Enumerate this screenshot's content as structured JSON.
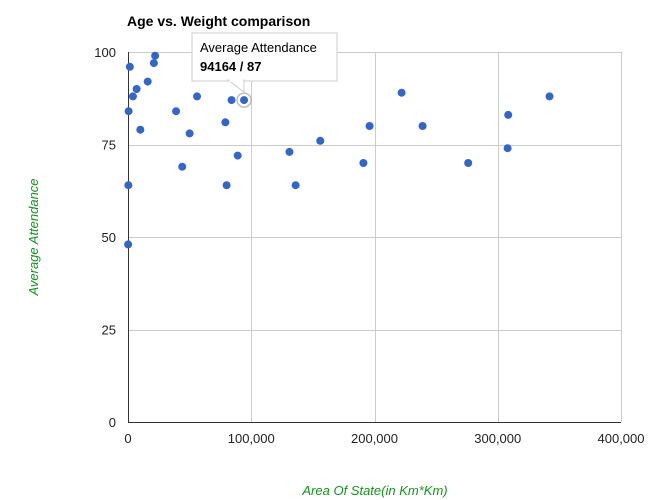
{
  "chart_data": {
    "type": "scatter",
    "title": "Age vs. Weight comparison",
    "xlabel": "Area Of State(in Km*Km)",
    "ylabel": "Average Attendance",
    "xlim": [
      0,
      400000
    ],
    "ylim": [
      0,
      100
    ],
    "x_ticks": [
      "0",
      "100,000",
      "200,000",
      "300,000",
      "400,000"
    ],
    "y_ticks": [
      "0",
      "25",
      "50",
      "75",
      "100"
    ],
    "grid": true,
    "legend": "none",
    "colors": {
      "point": "#3366cc",
      "axis_title": "#109618",
      "gridline": "#cccccc",
      "axis": "#333333"
    },
    "points": [
      {
        "x": 100,
        "y": 48
      },
      {
        "x": 300,
        "y": 64
      },
      {
        "x": 500,
        "y": 84
      },
      {
        "x": 1500,
        "y": 96
      },
      {
        "x": 4000,
        "y": 88
      },
      {
        "x": 7000,
        "y": 90
      },
      {
        "x": 10000,
        "y": 79
      },
      {
        "x": 16000,
        "y": 92
      },
      {
        "x": 21000,
        "y": 97
      },
      {
        "x": 22000,
        "y": 99
      },
      {
        "x": 39000,
        "y": 84
      },
      {
        "x": 44000,
        "y": 69
      },
      {
        "x": 50000,
        "y": 78
      },
      {
        "x": 56000,
        "y": 88
      },
      {
        "x": 79000,
        "y": 81
      },
      {
        "x": 80000,
        "y": 64
      },
      {
        "x": 84000,
        "y": 87
      },
      {
        "x": 89000,
        "y": 72
      },
      {
        "x": 94164,
        "y": 87,
        "highlighted": true
      },
      {
        "x": 131000,
        "y": 73
      },
      {
        "x": 136000,
        "y": 64
      },
      {
        "x": 156000,
        "y": 76
      },
      {
        "x": 191000,
        "y": 70
      },
      {
        "x": 196000,
        "y": 80
      },
      {
        "x": 222000,
        "y": 89
      },
      {
        "x": 239000,
        "y": 80
      },
      {
        "x": 276000,
        "y": 70
      },
      {
        "x": 308000,
        "y": 74
      },
      {
        "x": 308500,
        "y": 83
      },
      {
        "x": 342000,
        "y": 88
      }
    ],
    "tooltip": {
      "label": "Average Attendance",
      "value": "94164 / 87"
    }
  }
}
